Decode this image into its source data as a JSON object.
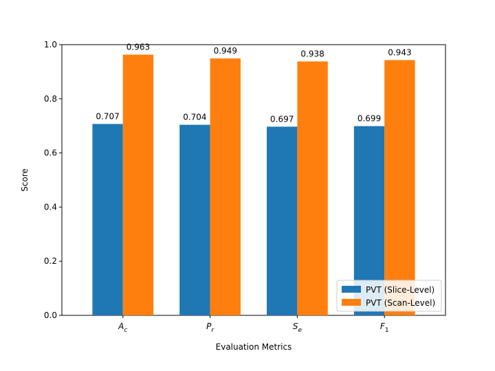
{
  "chart_data": {
    "type": "bar",
    "title": "",
    "xlabel": "Evaluation Metrics",
    "ylabel": "Score",
    "ylim": [
      0,
      1.0
    ],
    "yticks": [
      0.0,
      0.2,
      0.4,
      0.6,
      0.8,
      1.0
    ],
    "ytick_labels": [
      "0.0",
      "0.2",
      "0.4",
      "0.6",
      "0.8",
      "1.0"
    ],
    "categories": [
      {
        "base": "A",
        "sub": "c"
      },
      {
        "base": "P",
        "sub": "r"
      },
      {
        "base": "S",
        "sub": "e"
      },
      {
        "base": "F",
        "sub": "1"
      }
    ],
    "series": [
      {
        "name": "PVT (Slice-Level)",
        "color": "#1f77b4",
        "values": [
          0.707,
          0.704,
          0.697,
          0.699
        ],
        "labels": [
          "0.707",
          "0.704",
          "0.697",
          "0.699"
        ]
      },
      {
        "name": "PVT (Scan-Level)",
        "color": "#ff7f0e",
        "values": [
          0.963,
          0.949,
          0.938,
          0.943
        ],
        "labels": [
          "0.963",
          "0.949",
          "0.938",
          "0.943"
        ]
      }
    ],
    "legend_position": "lower-right",
    "grid": false
  }
}
